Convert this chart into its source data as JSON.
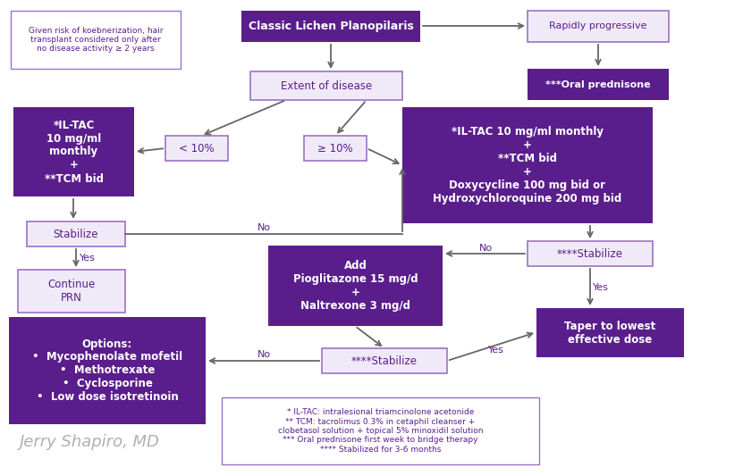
{
  "bg_color": "#ffffff",
  "purple_dark": "#5a1e8c",
  "purple_light_border": "#9b72c8",
  "light_box_fill": "#f0eaf8",
  "text_white": "#ffffff",
  "text_purple": "#5a1e8c",
  "arrow_color": "#666666",
  "title": "Classic Lichen Planopilaris",
  "note_box_text": "Given risk of koebnerization, hair\ntransplant considered only after\nno disease activity ≥ 2 years",
  "rapidly_progressive": "Rapidly progressive",
  "oral_prednisone": "***Oral prednisone",
  "extent_label": "Extent of disease",
  "less10": "< 10%",
  "geq10": "≥ 10%",
  "il_tac_left": "*IL-TAC\n10 mg/ml\nmonthly\n+\n**TCM bid",
  "il_tac_right": "*IL-TAC 10 mg/ml monthly\n+\n**TCM bid\n+\nDoxycycline 100 mg bid or\nHydroxychloroquine 200 mg bid",
  "stabilize_left": "Stabilize",
  "stabilize_right": "****Stabilize",
  "stabilize_bottom": "****Stabilize",
  "continue_prn": "Continue\nPRN",
  "add_pio": "Add\nPioglitazone 15 mg/d\n+\nNaltrexone 3 mg/d",
  "taper": "Taper to lowest\neffective dose",
  "options": "Options:\n•  Mycophenolate mofetil\n•  Methotrexate\n•  Cyclosporine\n•  Low dose isotretinoin",
  "footnote": "* IL-TAC: intralesional triamcinolone acetonide\n** TCM: tacrolimus 0.3% in cetaphil cleanser +\nclobetasol solution + topical 5% minoxidil solution\n*** Oral prednisone first week to bridge therapy\n**** Stabilized for 3-6 months",
  "signature": "Jerry Shapiro, MD",
  "yes_label": "Yes",
  "no_label": "No"
}
